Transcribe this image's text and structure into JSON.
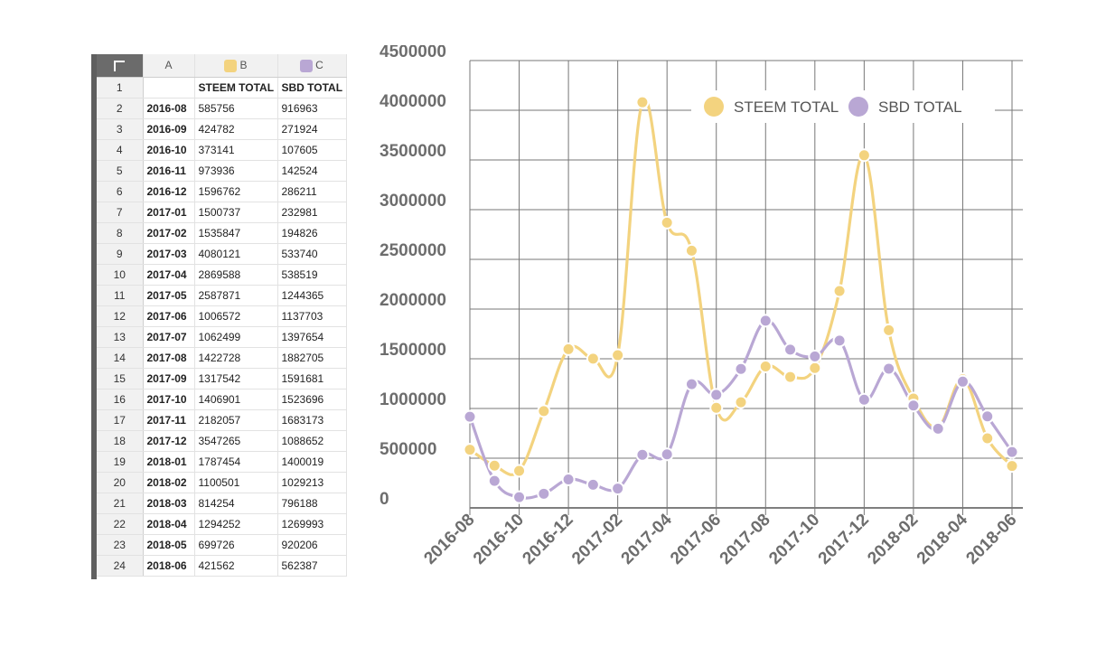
{
  "sheet": {
    "columns": [
      "A",
      "B",
      "C"
    ],
    "header_row": [
      "",
      "STEEM TOTAL",
      "SBD TOTAL"
    ],
    "rows": [
      [
        "2016-08",
        "585756",
        "916963"
      ],
      [
        "2016-09",
        "424782",
        "271924"
      ],
      [
        "2016-10",
        "373141",
        "107605"
      ],
      [
        "2016-11",
        "973936",
        "142524"
      ],
      [
        "2016-12",
        "1596762",
        "286211"
      ],
      [
        "2017-01",
        "1500737",
        "232981"
      ],
      [
        "2017-02",
        "1535847",
        "194826"
      ],
      [
        "2017-03",
        "4080121",
        "533740"
      ],
      [
        "2017-04",
        "2869588",
        "538519"
      ],
      [
        "2017-05",
        "2587871",
        "1244365"
      ],
      [
        "2017-06",
        "1006572",
        "1137703"
      ],
      [
        "2017-07",
        "1062499",
        "1397654"
      ],
      [
        "2017-08",
        "1422728",
        "1882705"
      ],
      [
        "2017-09",
        "1317542",
        "1591681"
      ],
      [
        "2017-10",
        "1406901",
        "1523696"
      ],
      [
        "2017-11",
        "2182057",
        "1683173"
      ],
      [
        "2017-12",
        "3547265",
        "1088652"
      ],
      [
        "2018-01",
        "1787454",
        "1400019"
      ],
      [
        "2018-02",
        "1100501",
        "1029213"
      ],
      [
        "2018-03",
        "814254",
        "796188"
      ],
      [
        "2018-04",
        "1294252",
        "1269993"
      ],
      [
        "2018-05",
        "699726",
        "920206"
      ],
      [
        "2018-06",
        "421562",
        "562387"
      ]
    ],
    "colors": {
      "B": "#f3d37f",
      "C": "#b9a7d4"
    }
  },
  "chart_data": {
    "type": "line",
    "x": [
      "2016-08",
      "2016-09",
      "2016-10",
      "2016-11",
      "2016-12",
      "2017-01",
      "2017-02",
      "2017-03",
      "2017-04",
      "2017-05",
      "2017-06",
      "2017-07",
      "2017-08",
      "2017-09",
      "2017-10",
      "2017-11",
      "2017-12",
      "2018-01",
      "2018-02",
      "2018-03",
      "2018-04",
      "2018-05",
      "2018-06"
    ],
    "x_tick_labels": [
      "2016-08",
      "2016-10",
      "2016-12",
      "2017-02",
      "2017-04",
      "2017-06",
      "2017-08",
      "2017-10",
      "2017-12",
      "2018-02",
      "2018-04",
      "2018-06"
    ],
    "ylim": [
      0,
      4500000
    ],
    "y_ticks": [
      "0",
      "500000",
      "1000000",
      "1500000",
      "2000000",
      "2500000",
      "3000000",
      "3500000",
      "4000000",
      "4500000"
    ],
    "grid": true,
    "legend_position": "top-right",
    "series": [
      {
        "name": "STEEM TOTAL",
        "color": "#f3d37f",
        "values": [
          585756,
          424782,
          373141,
          973936,
          1596762,
          1500737,
          1535847,
          4080121,
          2869588,
          2587871,
          1006572,
          1062499,
          1422728,
          1317542,
          1406901,
          2182057,
          3547265,
          1787454,
          1100501,
          814254,
          1294252,
          699726,
          421562
        ]
      },
      {
        "name": "SBD TOTAL",
        "color": "#b9a7d4",
        "values": [
          916963,
          271924,
          107605,
          142524,
          286211,
          232981,
          194826,
          533740,
          538519,
          1244365,
          1137703,
          1397654,
          1882705,
          1591681,
          1523696,
          1683173,
          1088652,
          1400019,
          1029213,
          796188,
          1269993,
          920206,
          562387
        ]
      }
    ]
  }
}
